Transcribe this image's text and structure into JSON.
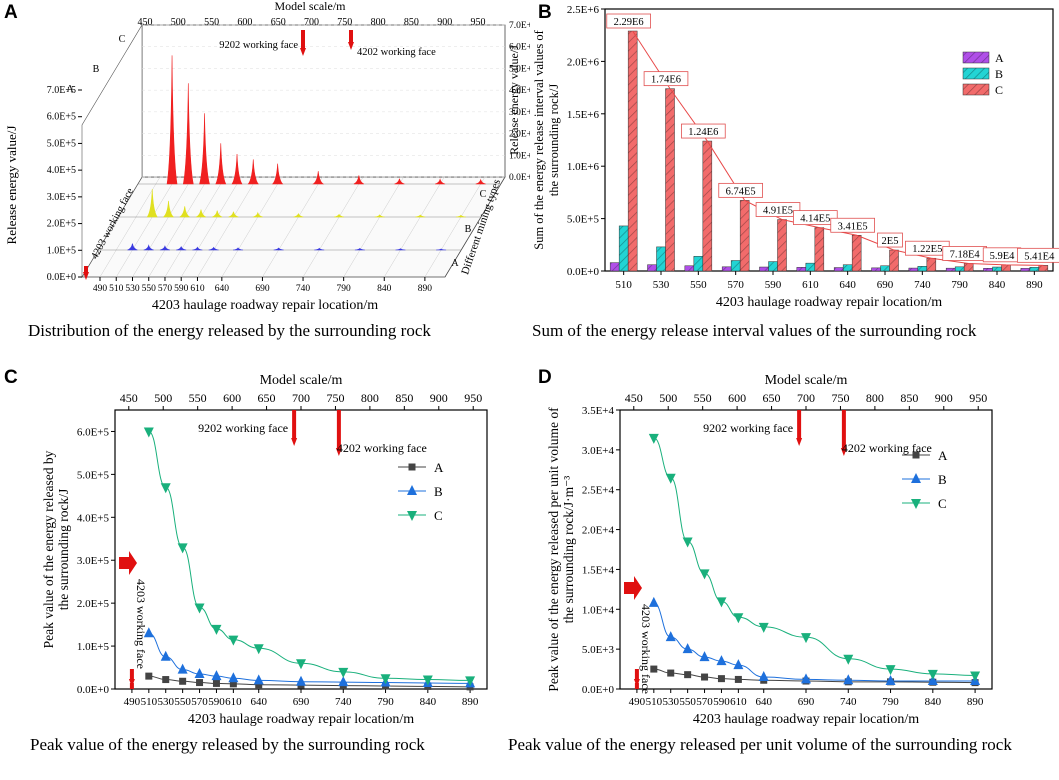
{
  "panels": [
    {
      "label": "A",
      "caption": "Distribution of the energy released by the surrounding rock"
    },
    {
      "label": "B",
      "caption": "Sum of the energy release interval values of the surrounding rock"
    },
    {
      "label": "C",
      "caption": "Peak value of the energy released by the surrounding rock"
    },
    {
      "label": "D",
      "caption": "Peak value of the energy released per unit volume of the surrounding rock"
    }
  ],
  "chart_data": [
    {
      "panel": "A",
      "type": "area",
      "title": "",
      "xlabel": "4203 haulage roadway repair location/m",
      "xticks": [
        "490",
        "510",
        "530",
        "550",
        "570",
        "590",
        "610",
        "640",
        "690",
        "740",
        "790",
        "840",
        "890"
      ],
      "top_axis": {
        "label": "Model scale/m",
        "ticks": [
          "450",
          "500",
          "550",
          "600",
          "650",
          "700",
          "750",
          "800",
          "850",
          "900",
          "950"
        ]
      },
      "zlabel": "Release energy value/J",
      "zticks": [
        "0.0E+0",
        "1.0E+5",
        "2.0E+5",
        "3.0E+5",
        "4.0E+5",
        "5.0E+5",
        "6.0E+5",
        "7.0E+5"
      ],
      "back_zticks": [
        "0.0E+0",
        "1.0E+5",
        "2.0E+5",
        "3.0E+5",
        "4.0E+5",
        "5.0E+5",
        "6.0E+5",
        "7.0E+5"
      ],
      "back_zlabel": "Release energy value/J",
      "ylabel": "Different mining types",
      "yticks": [
        "A",
        "B",
        "C"
      ],
      "left_yticks": [
        "C",
        "B",
        "A"
      ],
      "annotations": [
        "9202 working face",
        "4202 working face",
        "4203 working face"
      ],
      "colors": {
        "A": "#3a3ae0",
        "B": "#e0e020",
        "C": "#f02020"
      },
      "series": [
        {
          "name": "C",
          "peaks": [
            600000,
            470000,
            330000,
            190000,
            140000,
            115000,
            95000,
            60000,
            40000,
            25000,
            22000,
            20000
          ]
        },
        {
          "name": "B",
          "peaks": [
            130000,
            75000,
            50000,
            35000,
            30000,
            25000,
            20000,
            15000,
            12000,
            10000,
            9000,
            8000
          ]
        },
        {
          "name": "A",
          "peaks": [
            30000,
            22000,
            18000,
            15000,
            13000,
            12000,
            10000,
            9000,
            8000,
            7000,
            6000,
            5000
          ]
        }
      ]
    },
    {
      "panel": "B",
      "type": "bar",
      "title": "",
      "categories": [
        "510",
        "530",
        "550",
        "570",
        "590",
        "610",
        "640",
        "690",
        "740",
        "790",
        "840",
        "890"
      ],
      "xlabel": "4203 haulage roadway repair location/m",
      "ylabel": "Sum of the energy release interval values of the surrounding rock/J",
      "ylabel_lines": [
        "Sum of the energy release interval values of",
        "the surrounding rock/J"
      ],
      "ylim": [
        0,
        2500000
      ],
      "yticks": [
        "0.0E+0",
        "5.0E+5",
        "1.0E+6",
        "1.5E+6",
        "2.0E+6",
        "2.5E+6"
      ],
      "series": [
        {
          "name": "A",
          "color": "#b04fe8",
          "values": [
            80000,
            60000,
            50000,
            40000,
            38000,
            35000,
            33000,
            30000,
            28000,
            27000,
            26000,
            25000
          ]
        },
        {
          "name": "B",
          "color": "#22d4d4",
          "values": [
            430000,
            230000,
            140000,
            100000,
            90000,
            75000,
            60000,
            50000,
            45000,
            40000,
            38000,
            35000
          ]
        },
        {
          "name": "C",
          "color": "#f26b6b",
          "values": [
            2290000,
            1740000,
            1240000,
            674000,
            491000,
            414000,
            341000,
            200000,
            122000,
            71800,
            59000,
            54100
          ]
        }
      ],
      "data_labels": [
        "2.29E6",
        "1.74E6",
        "1.24E6",
        "6.74E5",
        "4.91E5",
        "4.14E5",
        "3.41E5",
        "2E5",
        "1.22E5",
        "7.18E4",
        "5.9E4",
        "5.41E4"
      ],
      "legend": "top-right"
    },
    {
      "panel": "C",
      "type": "line",
      "title": "",
      "x": [
        510,
        530,
        550,
        570,
        590,
        610,
        640,
        690,
        740,
        790,
        840,
        890
      ],
      "xticks": [
        "490",
        "510",
        "530",
        "550",
        "570",
        "590",
        "610",
        "640",
        "690",
        "740",
        "790",
        "840",
        "890"
      ],
      "xlabel": "4203 haulage roadway repair location/m",
      "top_axis": {
        "label": "Model scale/m",
        "ticks": [
          "450",
          "500",
          "550",
          "600",
          "650",
          "700",
          "750",
          "800",
          "850",
          "900",
          "950"
        ]
      },
      "ylabel": "Peak value of the energy released by the surrounding rock/J",
      "ylabel_lines": [
        "Peak value of the energy released by",
        "the surrounding rock/J"
      ],
      "ylim": [
        0,
        650000
      ],
      "yticks": [
        "0.0E+0",
        "1.0E+5",
        "2.0E+5",
        "3.0E+5",
        "4.0E+5",
        "5.0E+5",
        "6.0E+5"
      ],
      "series": [
        {
          "name": "A",
          "color": "#444444",
          "marker": "square",
          "values": [
            30000,
            22000,
            18000,
            15000,
            13000,
            12000,
            10000,
            9000,
            8000,
            7000,
            6000,
            5000
          ]
        },
        {
          "name": "B",
          "color": "#1e70dc",
          "marker": "triangle-up",
          "values": [
            130000,
            75000,
            45000,
            35000,
            30000,
            25000,
            20000,
            17000,
            16000,
            15000,
            14000,
            13000
          ]
        },
        {
          "name": "C",
          "color": "#19b07c",
          "marker": "triangle-down",
          "values": [
            600000,
            470000,
            330000,
            190000,
            140000,
            115000,
            95000,
            60000,
            40000,
            25000,
            22000,
            20000
          ]
        }
      ],
      "annotations": [
        "9202 working face",
        "4202 working face",
        "4203 working face"
      ],
      "legend": "right"
    },
    {
      "panel": "D",
      "type": "line",
      "title": "",
      "x": [
        510,
        530,
        550,
        570,
        590,
        610,
        640,
        690,
        740,
        790,
        840,
        890
      ],
      "xticks": [
        "490",
        "510",
        "530",
        "550",
        "570",
        "590",
        "610",
        "640",
        "690",
        "740",
        "790",
        "840",
        "890"
      ],
      "xlabel": "4203 haulage roadway repair location/m",
      "top_axis": {
        "label": "Model scale/m",
        "ticks": [
          "450",
          "500",
          "550",
          "600",
          "650",
          "700",
          "750",
          "800",
          "850",
          "900",
          "950"
        ]
      },
      "ylabel": "Peak value of the energy released per unit volume of the surrounding rock/J·m⁻³",
      "ylabel_lines": [
        "Peak value of the energy released per unit volume of",
        "the surrounding rock/J·m⁻³"
      ],
      "ylim": [
        0,
        35000
      ],
      "yticks": [
        "0.0E+0",
        "5.0E+3",
        "1.0E+4",
        "1.5E+4",
        "2.0E+4",
        "2.5E+4",
        "3.0E+4",
        "3.5E+4"
      ],
      "series": [
        {
          "name": "A",
          "color": "#444444",
          "marker": "square",
          "values": [
            2500,
            2000,
            1800,
            1500,
            1300,
            1200,
            1100,
            1000,
            900,
            900,
            850,
            800
          ]
        },
        {
          "name": "B",
          "color": "#1e70dc",
          "marker": "triangle-up",
          "values": [
            10800,
            6500,
            5000,
            4000,
            3500,
            3000,
            1500,
            1200,
            1100,
            1000,
            1000,
            1000
          ]
        },
        {
          "name": "C",
          "color": "#19b07c",
          "marker": "triangle-down",
          "values": [
            31500,
            26500,
            18500,
            14500,
            11000,
            9000,
            7800,
            6500,
            3800,
            2500,
            1900,
            1700
          ]
        }
      ],
      "annotations": [
        "9202 working face",
        "4202 working face",
        "4203 working face"
      ],
      "legend": "right"
    }
  ]
}
